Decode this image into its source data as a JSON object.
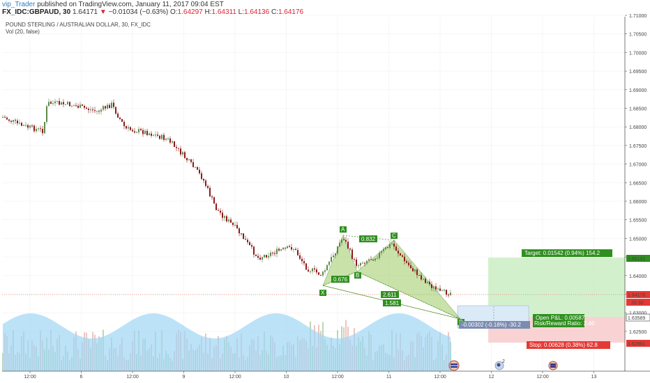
{
  "header": {
    "author": "vip_Trader",
    "published": "published on TradingView.com, January 11, 2017 09:04 EST",
    "symbol": "FX_IDC:GBPAUD, 30",
    "last": "1.64171",
    "change_arrow": "▼",
    "change": "−0.01034 (−0.63%)",
    "o_label": "O:",
    "o_val": "1.64297",
    "h_label": "H:",
    "h_val": "1.64311",
    "l_label": "L:",
    "l_val": "1.64136",
    "c_label": "C:",
    "c_val": "1.64176"
  },
  "chart": {
    "title": "POUND STERLING / AUSTRALIAN DOLLAR, 30, FX_IDC",
    "volume_legend": "Vol (20, false)",
    "price_axis_ticks": [
      "1.71000",
      "1.70500",
      "1.70000",
      "1.69500",
      "1.69000",
      "1.68500",
      "1.68000",
      "1.67500",
      "1.67000",
      "1.66500",
      "1.66000",
      "1.65500",
      "1.65000",
      "1.64500",
      "1.64000",
      "1.63500",
      "1.63000",
      "1.62500"
    ],
    "time_axis_ticks": [
      "12:00",
      "6",
      "12:00",
      "9",
      "12:00",
      "10",
      "12:00",
      "11",
      "12:00",
      "12",
      "12:00",
      "13"
    ],
    "price_labels": {
      "target_level": "1.65131",
      "current": "1.64176",
      "countdown": "26:30",
      "pl_level": "1.63589",
      "stop_level": "1.62961"
    },
    "pattern_points": [
      "X",
      "A",
      "B",
      "C",
      "D"
    ],
    "pattern_ratios": {
      "xb": "0.676",
      "ac": "0.832",
      "bd": "2.611",
      "xd": "1.581"
    },
    "position": {
      "target": "Target: 0.01542 (0.94%) 154.2",
      "open_pl": "Open P&L: 0.00587",
      "rr": "Risk/Reward Ratio: 2.46",
      "stop": "Stop: 0.00628 (0.38%) 62.8",
      "measure": "-0.00302 (-0.18%) -30.2"
    },
    "colors": {
      "up": "#5d8a4a",
      "down": "#8b1a1a",
      "pattern_fill": "#9ccc65",
      "pattern_edge": "#4a8c1c",
      "target_zone": "#c8ecc0",
      "stop_zone": "#f7c8c8",
      "label_green": "#2f8f1f",
      "label_red": "#e53935",
      "volume_bar": "#8ab8d8",
      "volume_ma": "#9fd6f5"
    },
    "icons": [
      "flag-icon-uk-au",
      "earth-icon",
      "flag-icon-uk"
    ]
  }
}
